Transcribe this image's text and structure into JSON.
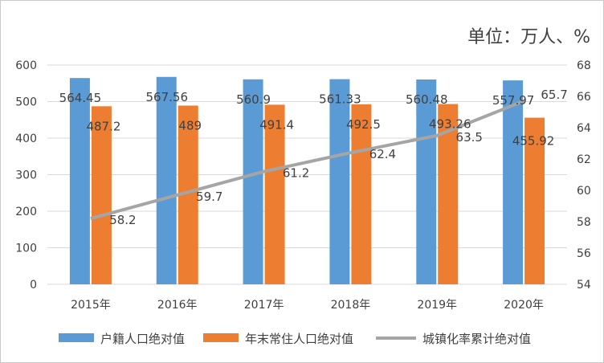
{
  "chart_data": {
    "type": "bar+line",
    "unit_label": "单位：万人、%",
    "categories": [
      "2015年",
      "2016年",
      "2017年",
      "2018年",
      "2019年",
      "2020年"
    ],
    "series": [
      {
        "name": "户籍人口绝对值",
        "type": "bar",
        "axis": "left",
        "color": "#5b9bd5",
        "values": [
          564.45,
          567.56,
          560.9,
          561.33,
          560.48,
          557.97
        ],
        "labels": [
          "564.45",
          "567.56",
          "560.9",
          "561.33",
          "560.48",
          "557.97"
        ]
      },
      {
        "name": "年末常住人口绝对值",
        "type": "bar",
        "axis": "left",
        "color": "#ed7d31",
        "values": [
          487.2,
          489,
          491.4,
          492.5,
          493.26,
          455.92
        ],
        "labels": [
          "487.2",
          "489",
          "491.4",
          "492.5",
          "493.26",
          "455.92"
        ]
      },
      {
        "name": "城镇化率累计绝对值",
        "type": "line",
        "axis": "right",
        "color": "#a5a5a5",
        "values": [
          58.2,
          59.7,
          61.2,
          62.4,
          63.5,
          65.7
        ],
        "labels": [
          "58.2",
          "59.7",
          "61.2",
          "62.4",
          "63.5",
          "65.7"
        ]
      }
    ],
    "y_left": {
      "min": 0,
      "max": 600,
      "step": 100,
      "ticks": [
        "0",
        "100",
        "200",
        "300",
        "400",
        "500",
        "600"
      ]
    },
    "y_right": {
      "min": 54,
      "max": 68,
      "step": 2,
      "ticks": [
        "54",
        "56",
        "58",
        "60",
        "62",
        "64",
        "66",
        "68"
      ]
    },
    "grid": true,
    "legend_position": "bottom"
  }
}
